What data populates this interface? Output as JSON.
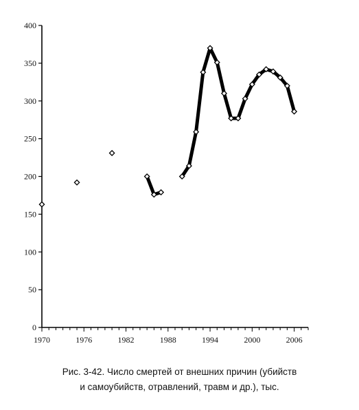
{
  "chart_data": {
    "type": "line",
    "title": "",
    "xlabel": "",
    "ylabel": "",
    "xlim": [
      1970,
      2008
    ],
    "ylim": [
      0,
      400
    ],
    "x_ticks": [
      1970,
      1976,
      1982,
      1988,
      1994,
      2000,
      2006
    ],
    "y_ticks": [
      0,
      50,
      100,
      150,
      200,
      250,
      300,
      350,
      400
    ],
    "grid": false,
    "legend": "none",
    "series": [
      {
        "style": "markers-only",
        "points": [
          {
            "x": 1970,
            "y": 163
          },
          {
            "x": 1975,
            "y": 192
          },
          {
            "x": 1980,
            "y": 231
          }
        ]
      },
      {
        "style": "thick-line-with-markers",
        "points": [
          {
            "x": 1985,
            "y": 200
          },
          {
            "x": 1986,
            "y": 176
          },
          {
            "x": 1987,
            "y": 179
          }
        ]
      },
      {
        "style": "thick-line-with-markers",
        "points": [
          {
            "x": 1990,
            "y": 200
          },
          {
            "x": 1991,
            "y": 214
          },
          {
            "x": 1992,
            "y": 259
          },
          {
            "x": 1993,
            "y": 338
          },
          {
            "x": 1994,
            "y": 370
          },
          {
            "x": 1995,
            "y": 351
          },
          {
            "x": 1996,
            "y": 310
          },
          {
            "x": 1997,
            "y": 277
          },
          {
            "x": 1998,
            "y": 277
          },
          {
            "x": 1999,
            "y": 303
          },
          {
            "x": 2000,
            "y": 322
          },
          {
            "x": 2001,
            "y": 335
          },
          {
            "x": 2002,
            "y": 342
          },
          {
            "x": 2003,
            "y": 339
          },
          {
            "x": 2004,
            "y": 331
          },
          {
            "x": 2005,
            "y": 320
          },
          {
            "x": 2006,
            "y": 286
          }
        ]
      }
    ],
    "line_color": "#000000",
    "marker_fill": "#ffffff",
    "marker_shape": "diamond"
  },
  "caption": {
    "line1": "Рис. 3-42. Число смертей от внешних причин (убийств",
    "line2": "и самоубийств, отравлений, травм и др.), тыс."
  }
}
